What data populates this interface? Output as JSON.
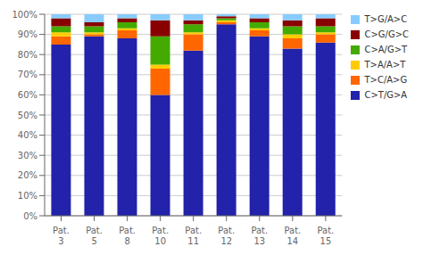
{
  "chart_data": {
    "type": "bar",
    "stacked": true,
    "categories": [
      "Pat.\n3",
      "Pat.\n5",
      "Pat.\n8",
      "Pat.\n10",
      "Pat.\n11",
      "Pat.\n12",
      "Pat.\n13",
      "Pat.\n14",
      "Pat.\n15"
    ],
    "series": [
      {
        "name": "C>T/G>A",
        "color": "#2222AA",
        "values": [
          85,
          89,
          88,
          60,
          82,
          95,
          89,
          83,
          86
        ]
      },
      {
        "name": "T>C/A>G",
        "color": "#FF6600",
        "values": [
          4,
          1,
          4,
          13,
          8,
          1,
          3,
          5,
          4
        ]
      },
      {
        "name": "T>A/A>T",
        "color": "#FFCC00",
        "values": [
          2,
          1,
          1,
          2,
          1,
          1,
          1,
          2,
          1
        ]
      },
      {
        "name": "C>A/G>T",
        "color": "#44AA00",
        "values": [
          3,
          3,
          3,
          14,
          4,
          1,
          3,
          4,
          3
        ]
      },
      {
        "name": "C>G/G>C",
        "color": "#880000",
        "values": [
          4,
          2,
          2,
          8,
          2,
          1,
          2,
          3,
          4
        ]
      },
      {
        "name": "T>G/A>C",
        "color": "#88CCFF",
        "values": [
          2,
          4,
          2,
          3,
          3,
          1,
          2,
          3,
          2
        ]
      }
    ],
    "ylim": [
      0,
      100
    ],
    "yticks": [
      {
        "value": 0,
        "label": "0%"
      },
      {
        "value": 10,
        "label": "10%"
      },
      {
        "value": 20,
        "label": "20%"
      },
      {
        "value": 30,
        "label": "30%"
      },
      {
        "value": 40,
        "label": "40%"
      },
      {
        "value": 50,
        "label": "50%"
      },
      {
        "value": 60,
        "label": "60%"
      },
      {
        "value": 70,
        "label": "70%"
      },
      {
        "value": 80,
        "label": "80%"
      },
      {
        "value": 90,
        "label": "90%"
      },
      {
        "value": 100,
        "label": "100%"
      }
    ],
    "grid": true,
    "legend": "right"
  }
}
